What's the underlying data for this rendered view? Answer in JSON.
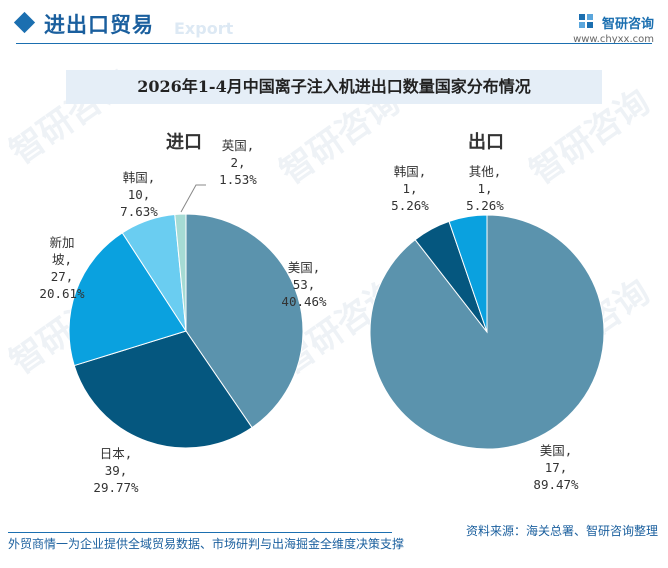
{
  "header": {
    "title": "进出口贸易",
    "subtitle": "Export",
    "brand_name": "智研咨询",
    "brand_url": "www.chyxx.com",
    "accent_color": "#1b6fb0"
  },
  "watermark": "智研咨询",
  "chart_title": "2026年1-4月中国离子注入机进出口数量国家分布情况",
  "chart_data": [
    {
      "type": "pie",
      "title": "进口",
      "slices": [
        {
          "name": "美国,",
          "value": "53,",
          "pct": "40.46%",
          "color": "#5b93ad"
        },
        {
          "name": "日本,",
          "value": "39,",
          "pct": "29.77%",
          "color": "#05577f"
        },
        {
          "name": "新加坡,",
          "value": "27,",
          "pct": "20.61%",
          "color": "#0aa1df"
        },
        {
          "name": "韩国,",
          "value": "10,",
          "pct": "7.63%",
          "color": "#6acdf1"
        },
        {
          "name": "英国,",
          "value": "2,",
          "pct": "1.53%",
          "color": "#a5dbd4"
        }
      ],
      "values": [
        53,
        39,
        27,
        10,
        2
      ]
    },
    {
      "type": "pie",
      "title": "出口",
      "slices": [
        {
          "name": "美国,",
          "value": "17,",
          "pct": "89.47%",
          "color": "#5b93ad"
        },
        {
          "name": "韩国,",
          "value": "1,",
          "pct": "5.26%",
          "color": "#05577f"
        },
        {
          "name": "其他,",
          "value": "1,",
          "pct": "5.26%",
          "color": "#0aa1df"
        }
      ],
      "values": [
        17,
        1,
        1
      ]
    }
  ],
  "footer": {
    "left": "外贸商情一为企业提供全域贸易数据、市场研判与出海掘金全维度决策支撑",
    "right": "资料来源：海关总署、智研咨询整理"
  }
}
